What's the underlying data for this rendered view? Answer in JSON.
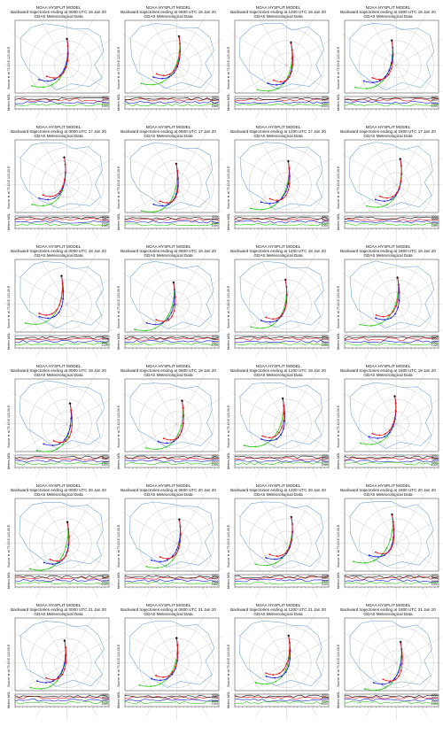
{
  "header_lines": {
    "model": "NOAA HYSPLIT MODEL",
    "data": "GDAS Meteorological Data"
  },
  "titles": [
    "Backward trajectories ending at 0000 UTC 16 Jan 20",
    "Backward trajectories ending at 0600 UTC 16 Jan 20",
    "Backward trajectories ending at 1200 UTC 16 Jan 20",
    "Backward trajectories ending at 1800 UTC 16 Jan 20",
    "Backward trajectories ending at 0000 UTC 17 Jan 20",
    "Backward trajectories ending at 0600 UTC 17 Jan 20",
    "Backward trajectories ending at 1200 UTC 17 Jan 20",
    "Backward trajectories ending at 1800 UTC 17 Jan 20",
    "Backward trajectories ending at 0000 UTC 18 Jan 20",
    "Backward trajectories ending at 0600 UTC 18 Jan 20",
    "Backward trajectories ending at 1200 UTC 18 Jan 20",
    "Backward trajectories ending at 1800 UTC 18 Jan 20",
    "Backward trajectories ending at 0000 UTC 19 Jan 20",
    "Backward trajectories ending at 0600 UTC 19 Jan 20",
    "Backward trajectories ending at 1200 UTC 19 Jan 20",
    "Backward trajectories ending at 1800 UTC 19 Jan 20",
    "Backward trajectories ending at 0000 UTC 20 Jan 20",
    "Backward trajectories ending at 0600 UTC 20 Jan 20",
    "Backward trajectories ending at 1200 UTC 20 Jan 20",
    "Backward trajectories ending at 1800 UTC 20 Jan 20",
    "Backward trajectories ending at 0000 UTC 21 Jan 20",
    "Backward trajectories ending at 0600 UTC 21 Jan 20",
    "Backward trajectories ending at 1200 UTC 21 Jan 20",
    "Backward trajectories ending at 1800 UTC 21 Jan 20"
  ],
  "source_label": "Source ★ at 75.10 E  123.00 E",
  "height_axis_label": "Meters MSL",
  "height_ticks": [
    "4000",
    "3000",
    "2000",
    "1000"
  ],
  "colors": {
    "red": "#e8141c",
    "blue": "#1a1ad8",
    "green": "#2ecc1a",
    "map": "#7ba7d6",
    "grid": "#b0b0b0"
  }
}
